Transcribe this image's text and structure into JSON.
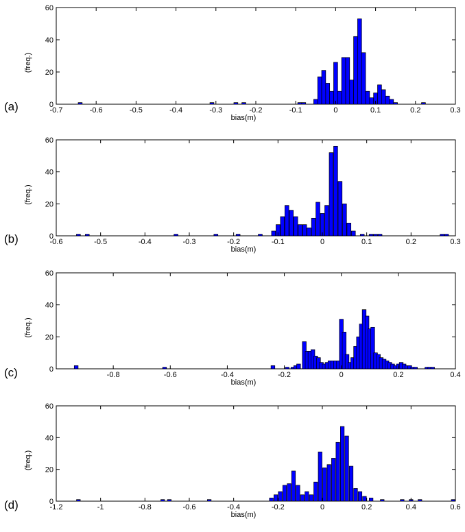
{
  "chart_data": [
    {
      "type": "bar",
      "panel_label": "(a)",
      "xlabel": "bias(m)",
      "ylabel": "(freq.)",
      "xlim": [
        -0.7,
        0.3
      ],
      "ylim": [
        0,
        60
      ],
      "xticks": [
        -0.7,
        -0.6,
        -0.5,
        -0.4,
        -0.3,
        -0.2,
        -0.1,
        0,
        0.1,
        0.2,
        0.3
      ],
      "xtick_labels": [
        "-0.7",
        "-0.6",
        "-0.5",
        "-0.4",
        "-0.3",
        "-0.2",
        "-0.1",
        "0",
        "0.1",
        "0.2",
        "0.3"
      ],
      "yticks": [
        0,
        20,
        40,
        60
      ],
      "ytick_labels": [
        "0",
        "20",
        "40",
        "60"
      ],
      "bar_color": "#0000ff",
      "bin_width": 0.01,
      "x": [
        -0.64,
        -0.31,
        -0.25,
        -0.23,
        -0.09,
        -0.08,
        -0.05,
        -0.04,
        -0.03,
        -0.02,
        -0.01,
        0.0,
        0.01,
        0.02,
        0.03,
        0.04,
        0.05,
        0.06,
        0.07,
        0.08,
        0.09,
        0.1,
        0.11,
        0.12,
        0.13,
        0.14,
        0.15,
        0.22
      ],
      "values": [
        1,
        1,
        1,
        1,
        1,
        1,
        3,
        17,
        21,
        13,
        8,
        26,
        8,
        29,
        29,
        15,
        42,
        53,
        32,
        8,
        4,
        7,
        12,
        9,
        5,
        3,
        1,
        1
      ]
    },
    {
      "type": "bar",
      "panel_label": "(b)",
      "xlabel": "bias(m)",
      "ylabel": "(freq.)",
      "xlim": [
        -0.6,
        0.3
      ],
      "ylim": [
        0,
        60
      ],
      "xticks": [
        -0.6,
        -0.5,
        -0.4,
        -0.3,
        -0.2,
        -0.1,
        0,
        0.1,
        0.2,
        0.3
      ],
      "xtick_labels": [
        "-0.6",
        "-0.5",
        "-0.4",
        "-0.3",
        "-0.2",
        "-0.1",
        "0",
        "0.1",
        "0.2",
        "0.3"
      ],
      "yticks": [
        0,
        20,
        40,
        60
      ],
      "ytick_labels": [
        "0",
        "20",
        "40",
        "60"
      ],
      "bar_color": "#0000ff",
      "bin_width": 0.009,
      "x": [
        -0.55,
        -0.53,
        -0.33,
        -0.24,
        -0.19,
        -0.14,
        -0.11,
        -0.1,
        -0.09,
        -0.08,
        -0.07,
        -0.06,
        -0.05,
        -0.04,
        -0.03,
        -0.02,
        -0.01,
        0.0,
        0.01,
        0.02,
        0.03,
        0.04,
        0.05,
        0.06,
        0.07,
        0.09,
        0.11,
        0.12,
        0.13,
        0.27,
        0.28
      ],
      "values": [
        1,
        1,
        1,
        1,
        1,
        1,
        3,
        7,
        12,
        19,
        16,
        12,
        7,
        7,
        5,
        11,
        21,
        14,
        19,
        52,
        56,
        34,
        20,
        8,
        3,
        1,
        1,
        1,
        1,
        1,
        1
      ]
    },
    {
      "type": "bar",
      "panel_label": "(c)",
      "xlabel": "bias(m)",
      "ylabel": "(freq.)",
      "xlim": [
        -1,
        0.4
      ],
      "ylim": [
        0,
        60
      ],
      "xticks": [
        -1,
        -0.8,
        -0.6,
        -0.4,
        -0.2,
        0,
        0.2,
        0.4
      ],
      "xtick_labels": [
        "",
        "-0.8",
        "-0.6",
        "-0.4",
        "-0.2",
        "0",
        "0.2",
        "0.4"
      ],
      "yticks": [
        0,
        20,
        40,
        60
      ],
      "ytick_labels": [
        "0",
        "20",
        "40",
        "60"
      ],
      "bar_color": "#0000ff",
      "bin_width": 0.0135,
      "x": [
        -0.93,
        -0.62,
        -0.24,
        -0.19,
        -0.17,
        -0.16,
        -0.15,
        -0.13,
        -0.12,
        -0.11,
        -0.1,
        -0.09,
        -0.08,
        -0.07,
        -0.06,
        -0.05,
        -0.04,
        -0.03,
        -0.02,
        -0.01,
        0.0,
        0.01,
        0.02,
        0.03,
        0.04,
        0.05,
        0.06,
        0.07,
        0.08,
        0.09,
        0.1,
        0.11,
        0.12,
        0.13,
        0.14,
        0.15,
        0.16,
        0.17,
        0.18,
        0.19,
        0.2,
        0.21,
        0.22,
        0.23,
        0.24,
        0.25,
        0.26,
        0.3,
        0.31,
        0.32
      ],
      "values": [
        2,
        1,
        2,
        1,
        1,
        2,
        3,
        17,
        11,
        11,
        12,
        8,
        7,
        4,
        3,
        4,
        5,
        5,
        5,
        5,
        31,
        23,
        9,
        4,
        7,
        14,
        20,
        28,
        37,
        33,
        25,
        26,
        10,
        9,
        7,
        6,
        5,
        4,
        3,
        2,
        3,
        4,
        3,
        2,
        2,
        1,
        1,
        1,
        1,
        1
      ]
    },
    {
      "type": "bar",
      "panel_label": "(d)",
      "xlabel": "bias(m)",
      "ylabel": "(freq.)",
      "xlim": [
        -1.2,
        0.6
      ],
      "ylim": [
        0,
        60
      ],
      "xticks": [
        -1.2,
        -1,
        -0.8,
        -0.6,
        -0.4,
        -0.2,
        0,
        0.2,
        0.4,
        0.6
      ],
      "xtick_labels": [
        "-1.2",
        "-1",
        "-0.8",
        "-0.6",
        "-0.4",
        "-0.2",
        "0",
        "0.2",
        "0.4",
        "0.6"
      ],
      "yticks": [
        0,
        20,
        40,
        60
      ],
      "ytick_labels": [
        "0",
        "20",
        "40",
        "60"
      ],
      "bar_color": "#0000ff",
      "bin_width": 0.017,
      "x": [
        -1.1,
        -0.72,
        -0.69,
        -0.51,
        -0.23,
        -0.21,
        -0.19,
        -0.17,
        -0.15,
        -0.13,
        -0.11,
        -0.09,
        -0.07,
        -0.05,
        -0.03,
        -0.01,
        0.01,
        0.03,
        0.05,
        0.07,
        0.09,
        0.11,
        0.13,
        0.15,
        0.17,
        0.19,
        0.22,
        0.27,
        0.36,
        0.4,
        0.44,
        0.59
      ],
      "values": [
        1,
        1,
        1,
        1,
        2,
        4,
        6,
        10,
        11,
        19,
        10,
        4,
        6,
        4,
        12,
        31,
        21,
        23,
        27,
        37,
        47,
        41,
        22,
        8,
        6,
        3,
        2,
        1,
        1,
        1,
        1,
        1
      ]
    }
  ]
}
